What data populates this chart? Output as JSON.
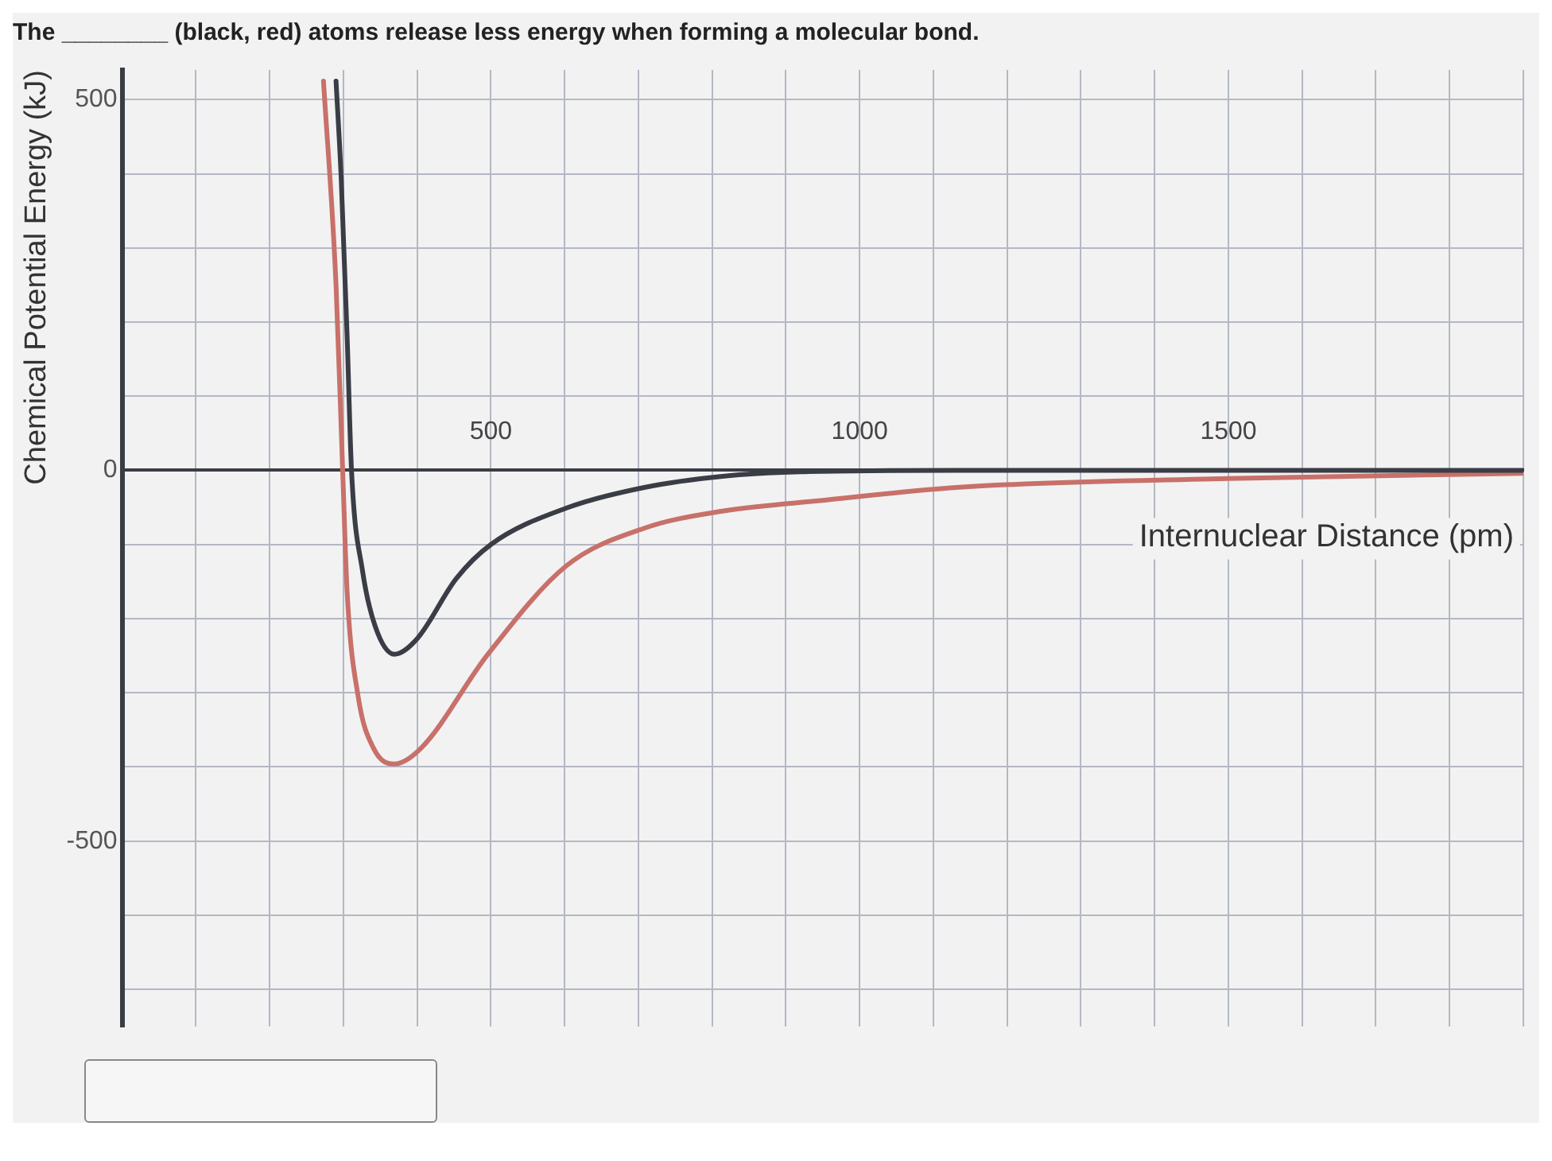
{
  "chart_data": {
    "type": "line",
    "title": "The ________ (black, red) atoms release less energy when forming a molecular bond.",
    "xlabel": "Internuclear Distance (pm)",
    "ylabel": "Chemical Potential Energy (kJ)",
    "xlim": [
      0,
      1900
    ],
    "ylim": [
      -750,
      540
    ],
    "xticks": [
      {
        "value": 100,
        "label": null
      },
      {
        "value": 200,
        "label": null
      },
      {
        "value": 300,
        "label": null
      },
      {
        "value": 400,
        "label": null
      },
      500,
      {
        "value": 600,
        "label": null
      },
      {
        "value": 700,
        "label": null
      },
      {
        "value": 800,
        "label": null
      },
      {
        "value": 900,
        "label": null
      },
      1000,
      {
        "value": 1100,
        "label": null
      },
      {
        "value": 1200,
        "label": null
      },
      {
        "value": 1300,
        "label": null
      },
      {
        "value": 1400,
        "label": null
      },
      1500,
      {
        "value": 1600,
        "label": null
      },
      {
        "value": 1700,
        "label": null
      },
      {
        "value": 1800,
        "label": null
      },
      {
        "value": 1900,
        "label": null
      }
    ],
    "yticks": [
      {
        "value": -700,
        "label": null
      },
      {
        "value": -600,
        "label": null
      },
      -500,
      {
        "value": -400,
        "label": null
      },
      {
        "value": -300,
        "label": null
      },
      {
        "value": -200,
        "label": null
      },
      {
        "value": -100,
        "label": null
      },
      0,
      {
        "value": 100,
        "label": null
      },
      {
        "value": 200,
        "label": null
      },
      {
        "value": 300,
        "label": null
      },
      {
        "value": 400,
        "label": null
      },
      500
    ],
    "grid": true,
    "legend": false,
    "line_style": "solid",
    "series": [
      {
        "color": "#3a3d45",
        "x": [
          290,
          297,
          305,
          311,
          326,
          343,
          369,
          400,
          453,
          500,
          602,
          708,
          814,
          920,
          1131,
          1500,
          1900
        ],
        "values": [
          525,
          394,
          182,
          0,
          -136,
          -210,
          -248,
          -227,
          -146,
          -100,
          -51,
          -23,
          -8,
          -2,
          0,
          0,
          0
        ]
      },
      {
        "color": "#c8706a",
        "x": [
          273,
          290,
          299,
          305,
          320,
          341,
          369,
          405,
          496,
          602,
          708,
          814,
          955,
          1131,
          1500,
          1900
        ],
        "values": [
          525,
          250,
          0,
          -163,
          -305,
          -375,
          -396,
          -375,
          -248,
          -129,
          -78,
          -55,
          -40,
          -23,
          -11,
          -4
        ]
      }
    ]
  }
}
